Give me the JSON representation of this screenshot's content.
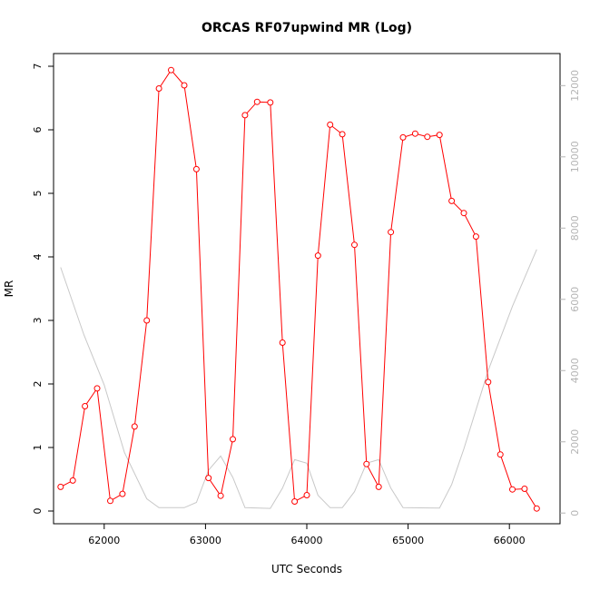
{
  "chart_data": {
    "type": "line",
    "title": "ORCAS RF07upwind MR (Log)",
    "xlabel": "UTC Seconds",
    "ylabel": "MR",
    "xlim": [
      61500,
      66500
    ],
    "ylim": [
      -0.2,
      7.2
    ],
    "y2lim": [
      -300,
      12900
    ],
    "x_ticks": [
      62000,
      63000,
      64000,
      65000,
      66000
    ],
    "y_ticks": [
      0,
      1,
      2,
      3,
      4,
      5,
      6,
      7
    ],
    "y2_ticks": [
      0,
      2000,
      4000,
      6000,
      8000,
      10000,
      12000
    ],
    "grid": false,
    "series": [
      {
        "color": "#ff0000",
        "axis": "left",
        "marker": "open-circle",
        "points": [
          [
            61570,
            0.38
          ],
          [
            61690,
            0.48
          ],
          [
            61810,
            1.65
          ],
          [
            61930,
            1.93
          ],
          [
            62060,
            0.16
          ],
          [
            62180,
            0.27
          ],
          [
            62300,
            1.33
          ],
          [
            62420,
            3.0
          ],
          [
            62540,
            6.65
          ],
          [
            62660,
            6.94
          ],
          [
            62790,
            6.7
          ],
          [
            62910,
            5.38
          ],
          [
            63030,
            0.52
          ],
          [
            63150,
            0.24
          ],
          [
            63270,
            1.13
          ],
          [
            63390,
            6.23
          ],
          [
            63510,
            6.44
          ],
          [
            63640,
            6.43
          ],
          [
            63760,
            2.65
          ],
          [
            63880,
            0.15
          ],
          [
            64000,
            0.25
          ],
          [
            64110,
            4.02
          ],
          [
            64230,
            6.08
          ],
          [
            64350,
            5.93
          ],
          [
            64470,
            4.19
          ],
          [
            64590,
            0.74
          ],
          [
            64710,
            0.38
          ],
          [
            64830,
            4.39
          ],
          [
            64950,
            5.88
          ],
          [
            65070,
            5.94
          ],
          [
            65190,
            5.89
          ],
          [
            65310,
            5.92
          ],
          [
            65430,
            4.88
          ],
          [
            65550,
            4.69
          ],
          [
            65670,
            4.32
          ],
          [
            65790,
            2.03
          ],
          [
            65910,
            0.89
          ],
          [
            66030,
            0.34
          ],
          [
            66150,
            0.35
          ],
          [
            66270,
            0.04
          ]
        ]
      },
      {
        "color": "#c8c8c8",
        "axis": "right",
        "marker": "none",
        "points": [
          [
            61570,
            6900
          ],
          [
            61800,
            5000
          ],
          [
            62000,
            3600
          ],
          [
            62200,
            1700
          ],
          [
            62420,
            400
          ],
          [
            62540,
            150
          ],
          [
            62790,
            150
          ],
          [
            62910,
            300
          ],
          [
            63030,
            1200
          ],
          [
            63150,
            1600
          ],
          [
            63270,
            1000
          ],
          [
            63390,
            150
          ],
          [
            63640,
            130
          ],
          [
            63760,
            700
          ],
          [
            63880,
            1500
          ],
          [
            64000,
            1400
          ],
          [
            64110,
            500
          ],
          [
            64230,
            150
          ],
          [
            64350,
            150
          ],
          [
            64470,
            600
          ],
          [
            64590,
            1400
          ],
          [
            64710,
            1500
          ],
          [
            64830,
            700
          ],
          [
            64950,
            150
          ],
          [
            65310,
            140
          ],
          [
            65430,
            800
          ],
          [
            65550,
            1800
          ],
          [
            65790,
            4000
          ],
          [
            66030,
            5800
          ],
          [
            66270,
            7400
          ]
        ]
      }
    ]
  }
}
